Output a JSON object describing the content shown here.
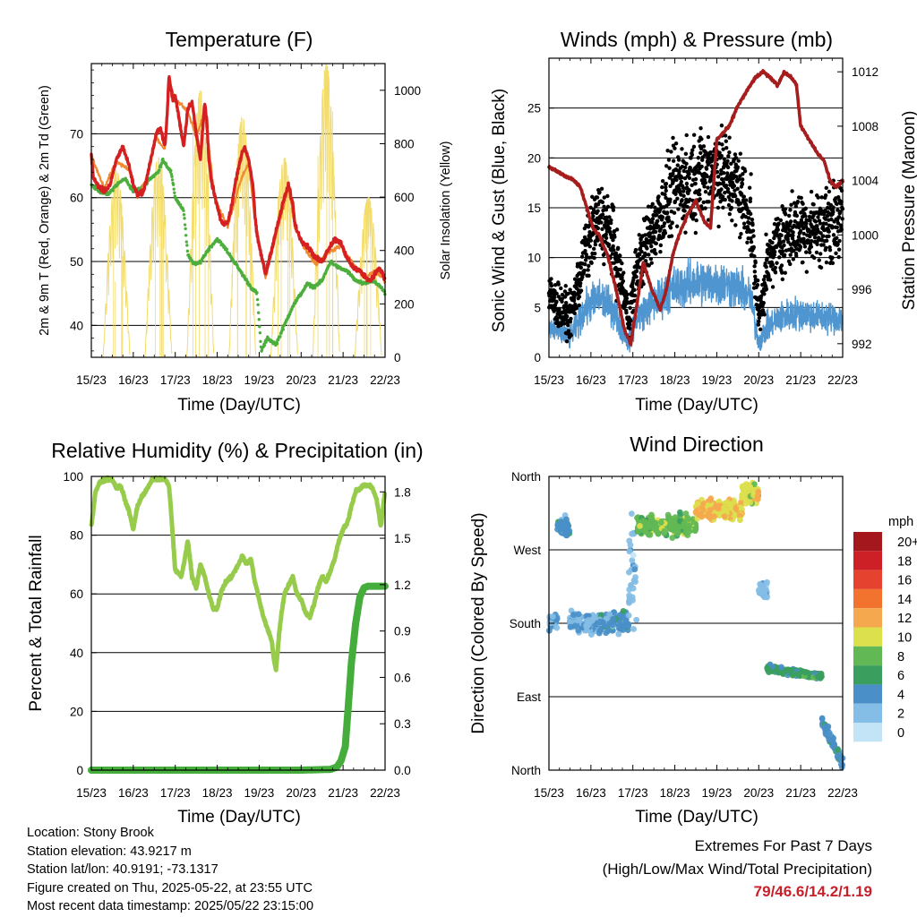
{
  "station": {
    "location": "Location: Stony Brook",
    "elevation": "Station elevation: 43.9217 m",
    "latlon": "Station lat/lon: 40.9191; -73.1317",
    "created": "Figure created on Thu, 2025-05-22, at 23:55 UTC",
    "recent": "Most recent data timestamp: 2025/05/22 23:15:00"
  },
  "extremes": {
    "title": "Extremes For Past 7 Days",
    "subtitle": "(High/Low/Max Wind/Total Precipitation)",
    "values": "79/46.6/14.2/1.19"
  },
  "colors": {
    "temp_2m": "#d42020",
    "temp_9m": "#f08a30",
    "dewpoint": "#4cae3c",
    "solar": "#f3dc6a",
    "sonic_wind": "#4f95cf",
    "gust": "#000000",
    "pressure": "#a51d1d",
    "rh": "#97cb4b",
    "precip": "#45ad3c"
  },
  "chart_data": [
    {
      "id": "temperature",
      "type": "line",
      "title": "Temperature (F)",
      "xlabel": "Time (Day/UTC)",
      "ylabel": "2m & 9m T (Red, Orange) & 2m Td (Green)",
      "ylabel_right": "Solar Insolation (Yellow)",
      "x_ticks": [
        "15/23",
        "16/23",
        "17/23",
        "18/23",
        "19/23",
        "20/23",
        "21/23",
        "22/23"
      ],
      "xlim": [
        0,
        7
      ],
      "ylim": [
        35,
        81
      ],
      "y_ticks": [
        40,
        50,
        60,
        70
      ],
      "ylim_right": [
        0,
        1100
      ],
      "y_ticks_right": [
        0,
        200,
        400,
        600,
        800,
        1000
      ],
      "grid_y": true,
      "series": [
        {
          "key": "t2m",
          "axis": "left",
          "x": [
            0,
            0.05,
            0.15,
            0.3,
            0.45,
            0.6,
            0.75,
            0.9,
            1.0,
            1.1,
            1.25,
            1.35,
            1.45,
            1.55,
            1.65,
            1.75,
            1.8,
            1.85,
            1.9,
            1.95,
            2.0,
            2.1,
            2.2,
            2.3,
            2.4,
            2.5,
            2.6,
            2.7,
            2.75,
            2.8,
            2.85,
            2.95,
            3.1,
            3.25,
            3.35,
            3.45,
            3.55,
            3.65,
            3.75,
            3.85,
            3.9,
            3.95,
            4.05,
            4.15,
            4.3,
            4.45,
            4.6,
            4.7,
            4.8,
            4.85,
            4.95,
            5.05,
            5.2,
            5.35,
            5.5,
            5.65,
            5.8,
            5.95,
            6.05,
            6.15,
            6.25,
            6.4,
            6.55,
            6.65,
            6.75,
            6.85,
            6.95,
            7.0
          ],
          "y": [
            67,
            63,
            62,
            61,
            62,
            66,
            68,
            65,
            62,
            60.5,
            61,
            64,
            67,
            70,
            71,
            68,
            72,
            79,
            77,
            75,
            76,
            72,
            68,
            74,
            75,
            70,
            66,
            75,
            72,
            66,
            63,
            60,
            56,
            56,
            59,
            63,
            66,
            68,
            66,
            62,
            57,
            54,
            51,
            48,
            52,
            56,
            60,
            62,
            59,
            56,
            54,
            53,
            52,
            50.5,
            50,
            52,
            53.5,
            53,
            51,
            50,
            49,
            48.5,
            47.5,
            47,
            48,
            49,
            48,
            47
          ]
        },
        {
          "key": "t9m",
          "axis": "left",
          "x": [
            0,
            0.3,
            0.6,
            0.9,
            1.1,
            1.35,
            1.55,
            1.75,
            1.85,
            2.0,
            2.3,
            2.5,
            2.7,
            2.95,
            3.25,
            3.55,
            3.75,
            3.9,
            4.15,
            4.45,
            4.7,
            4.85,
            5.05,
            5.35,
            5.65,
            5.95,
            6.25,
            6.55,
            6.75,
            6.95,
            7.0
          ],
          "y": [
            66.5,
            61.5,
            65.5,
            64.5,
            60,
            63.5,
            69.5,
            67.5,
            78,
            75.5,
            73.5,
            69.5,
            73.5,
            59.5,
            55.5,
            62.5,
            65.5,
            56.5,
            47.5,
            55.5,
            61.5,
            55.5,
            52.5,
            49.5,
            51.5,
            52.5,
            49.5,
            47.5,
            48.5,
            47.5,
            46.5
          ]
        },
        {
          "key": "td2m",
          "axis": "left",
          "x": [
            0,
            0.2,
            0.4,
            0.6,
            0.8,
            1.0,
            1.2,
            1.4,
            1.6,
            1.7,
            1.8,
            1.9,
            2.0,
            2.1,
            2.2,
            2.3,
            2.4,
            2.5,
            2.6,
            2.8,
            3.0,
            3.2,
            3.4,
            3.6,
            3.8,
            3.95,
            4.05,
            4.2,
            4.4,
            4.6,
            4.8,
            5.0,
            5.15,
            5.3,
            5.5,
            5.7,
            5.9,
            6.1,
            6.3,
            6.5,
            6.7,
            6.9,
            7.0
          ],
          "y": [
            62,
            61,
            60.5,
            62,
            63,
            61,
            61.5,
            63,
            64,
            66,
            65,
            64,
            60,
            59,
            58,
            51,
            50,
            49.5,
            50,
            52,
            53.5,
            52,
            50,
            48,
            46,
            45,
            36,
            38,
            37,
            40,
            43,
            45,
            46.5,
            46,
            47,
            50,
            49,
            48.5,
            47,
            46.5,
            47,
            46,
            45
          ]
        },
        {
          "key": "solar",
          "axis": "right",
          "type": "diurnal_peaks",
          "peak_times": [
            0.6,
            1.6,
            2.6,
            3.6,
            4.6,
            5.6,
            6.6
          ],
          "peak_values": [
            700,
            750,
            1000,
            900,
            750,
            1100,
            600
          ]
        }
      ]
    },
    {
      "id": "winds",
      "type": "scatter",
      "title": "Winds (mph) & Pressure (mb)",
      "xlabel": "Time (Day/UTC)",
      "ylabel": "Sonic Wind & Gust (Blue, Black)",
      "ylabel_right": "Station Pressure (Maroon)",
      "x_ticks": [
        "15/23",
        "16/23",
        "17/23",
        "18/23",
        "19/23",
        "20/23",
        "21/23",
        "22/23"
      ],
      "xlim": [
        0,
        7
      ],
      "ylim": [
        0,
        30
      ],
      "y_ticks": [
        0,
        5,
        10,
        15,
        20,
        25
      ],
      "ylim_right": [
        991,
        1013
      ],
      "y_ticks_right": [
        992,
        996,
        1000,
        1004,
        1008,
        1012
      ],
      "grid_y": true,
      "series": [
        {
          "key": "sonic_mean",
          "axis": "left",
          "type": "noisy_band",
          "x": [
            0,
            0.5,
            0.9,
            1.2,
            1.5,
            1.9,
            2.1,
            2.5,
            3.0,
            3.5,
            4.0,
            4.5,
            4.8,
            5.0,
            5.2,
            5.5,
            6.0,
            6.5,
            7.0
          ],
          "y": [
            3,
            2,
            5,
            6,
            5,
            1.5,
            4,
            5.5,
            7,
            7.5,
            7.5,
            7,
            6,
            1.5,
            3,
            4,
            4.5,
            4,
            4
          ]
        },
        {
          "key": "gust_mean",
          "axis": "left",
          "type": "scatter_cloud",
          "x": [
            0,
            0.5,
            0.9,
            1.2,
            1.5,
            1.9,
            2.1,
            2.5,
            3.0,
            3.5,
            4.0,
            4.5,
            4.8,
            5.0,
            5.2,
            5.5,
            6.0,
            6.5,
            7.0
          ],
          "y": [
            6,
            4,
            11,
            14,
            12,
            4,
            9,
            13,
            17,
            18,
            19,
            17,
            14,
            4,
            9,
            12,
            13,
            13,
            14
          ]
        },
        {
          "key": "pressure",
          "axis": "right",
          "x": [
            0,
            0.3,
            0.6,
            0.75,
            0.9,
            1.05,
            1.2,
            1.4,
            1.6,
            1.8,
            1.95,
            2.1,
            2.25,
            2.45,
            2.65,
            2.8,
            2.95,
            3.1,
            3.3,
            3.5,
            3.7,
            3.85,
            4.0,
            4.15,
            4.3,
            4.5,
            4.7,
            4.9,
            5.1,
            5.3,
            5.45,
            5.6,
            5.8,
            5.9,
            6.0,
            6.2,
            6.4,
            6.55,
            6.7,
            6.85,
            7.0
          ],
          "y": [
            1005,
            1004.5,
            1004,
            1003.5,
            1002,
            1000.5,
            1000,
            998.5,
            996,
            993,
            992,
            995,
            998,
            996,
            994.5,
            996,
            998.5,
            1000,
            1001.5,
            1002.5,
            1001,
            1000.5,
            1007,
            1007.5,
            1008,
            1009.5,
            1010.5,
            1011.5,
            1012,
            1011.5,
            1011,
            1012,
            1011.5,
            1011,
            1008,
            1007,
            1006,
            1005.5,
            1004,
            1003.5,
            1004
          ]
        }
      ]
    },
    {
      "id": "humidity",
      "type": "line",
      "title": "Relative Humidity (%) & Precipitation (in)",
      "xlabel": "Time (Day/UTC)",
      "ylabel": "Percent & Total Rainfall",
      "x_ticks": [
        "15/23",
        "16/23",
        "17/23",
        "18/23",
        "19/23",
        "20/23",
        "21/23",
        "22/23"
      ],
      "xlim": [
        0,
        7
      ],
      "ylim": [
        0,
        100
      ],
      "y_ticks": [
        0,
        20,
        40,
        60,
        80,
        100
      ],
      "ylim_right": [
        0,
        1.9
      ],
      "y_ticks_right": [
        "0.0",
        "0.3",
        "0.6",
        "0.9",
        "1.2",
        "1.5",
        "1.8"
      ],
      "grid_y": true,
      "series": [
        {
          "key": "rh",
          "axis": "left",
          "x": [
            0,
            0.1,
            0.2,
            0.35,
            0.5,
            0.6,
            0.7,
            0.8,
            0.9,
            1.0,
            1.1,
            1.2,
            1.3,
            1.45,
            1.6,
            1.75,
            1.85,
            1.9,
            2.0,
            2.15,
            2.3,
            2.4,
            2.5,
            2.6,
            2.7,
            2.8,
            2.9,
            3.0,
            3.1,
            3.2,
            3.35,
            3.5,
            3.6,
            3.7,
            3.8,
            3.9,
            4.0,
            4.1,
            4.2,
            4.3,
            4.35,
            4.4,
            4.5,
            4.6,
            4.7,
            4.8,
            4.9,
            5.0,
            5.1,
            5.2,
            5.3,
            5.4,
            5.5,
            5.6,
            5.7,
            5.8,
            5.9,
            6.0,
            6.1,
            6.2,
            6.3,
            6.4,
            6.5,
            6.6,
            6.7,
            6.8,
            6.9,
            7.0
          ],
          "y": [
            83,
            95,
            98,
            99,
            99,
            96,
            97,
            92,
            88,
            82,
            90,
            93,
            95,
            99,
            99,
            99,
            97,
            88,
            68,
            66,
            78,
            66,
            62,
            70,
            66,
            60,
            55,
            55,
            61,
            64,
            66,
            70,
            73,
            70,
            72,
            64,
            58,
            52,
            48,
            44,
            38,
            34,
            50,
            60,
            63,
            66,
            60,
            58,
            54,
            52,
            56,
            62,
            66,
            64,
            68,
            72,
            78,
            82,
            84,
            90,
            95,
            96,
            97,
            97,
            96,
            92,
            83,
            95
          ]
        },
        {
          "key": "precip",
          "axis": "right",
          "x": [
            0,
            1,
            2,
            3,
            4,
            5,
            5.7,
            5.85,
            5.95,
            6.05,
            6.12,
            6.2,
            6.3,
            6.4,
            6.5,
            6.6,
            7.0
          ],
          "y": [
            0,
            0,
            0,
            0,
            0,
            0,
            0.005,
            0.02,
            0.06,
            0.15,
            0.4,
            0.7,
            0.95,
            1.12,
            1.18,
            1.19,
            1.19
          ]
        }
      ]
    },
    {
      "id": "wind_direction",
      "type": "scatter",
      "title": "Wind Direction",
      "xlabel": "Time (Day/UTC)",
      "ylabel": "Direction (Colored By Speed)",
      "x_ticks": [
        "15/23",
        "16/23",
        "17/23",
        "18/23",
        "19/23",
        "20/23",
        "21/23",
        "22/23"
      ],
      "xlim": [
        0,
        7
      ],
      "ylim": [
        0,
        360
      ],
      "y_ticks": [
        "North",
        "East",
        "South",
        "West",
        "North"
      ],
      "grid_y": true,
      "colorbar": {
        "title": "mph",
        "labels": [
          "20+",
          "18",
          "16",
          "14",
          "12",
          "10",
          "8",
          "6",
          "4",
          "2",
          "0"
        ],
        "colors": [
          "#a3171d",
          "#cc1f26",
          "#e5432f",
          "#f2732d",
          "#f5a84e",
          "#dce04c",
          "#62b855",
          "#3a9e5e",
          "#4a8fc8",
          "#84bde5",
          "#c3e4f6"
        ]
      },
      "series": [
        {
          "key": "direction_segments",
          "type": "scatter_cloud",
          "x_ranges": [
            [
              0,
              0.2
            ],
            [
              0.2,
              0.5
            ],
            [
              0.5,
              1.2
            ],
            [
              1.2,
              1.9
            ],
            [
              1.9,
              2.1
            ],
            [
              2.1,
              3.5
            ],
            [
              3.5,
              4.6
            ],
            [
              4.6,
              5.0
            ],
            [
              5.0,
              5.2
            ],
            [
              5.2,
              6.5
            ],
            [
              6.5,
              7.0
            ]
          ],
          "dir_mean": [
            180,
            300,
            180,
            180,
            240,
            300,
            320,
            340,
            220,
            120,
            60
          ],
          "speed_mean": [
            3,
            4,
            3,
            4,
            2,
            8,
            11,
            10,
            2,
            6,
            4
          ]
        }
      ]
    }
  ]
}
